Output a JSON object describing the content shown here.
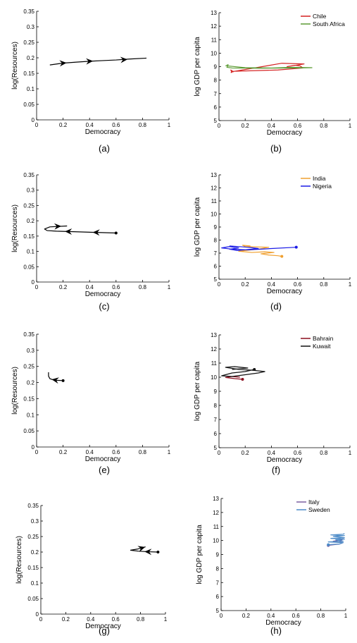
{
  "chart_data": [
    {
      "id": "a",
      "type": "line",
      "xlabel": "Democracy",
      "ylabel": "log(Resources)",
      "xlim": [
        0,
        1
      ],
      "ylim": [
        0,
        0.35
      ],
      "xticks": [
        "0",
        "0.2",
        "0.4",
        "0.6",
        "0.8",
        "1"
      ],
      "yticks": [
        "0",
        "0.05",
        "0.1",
        "0.15",
        "0.2",
        "0.25",
        "0.3",
        "0.35"
      ],
      "caption": "(a)",
      "series": [
        {
          "color": "#000000",
          "x": [
            0.1,
            0.2,
            0.3,
            0.4,
            0.5,
            0.6,
            0.7,
            0.83
          ],
          "y": [
            0.177,
            0.183,
            0.186,
            0.189,
            0.191,
            0.193,
            0.196,
            0.199
          ],
          "arrows": [
            [
              0.2,
              0.183
            ],
            [
              0.4,
              0.189
            ],
            [
              0.66,
              0.194
            ]
          ],
          "start_dot": false
        }
      ]
    },
    {
      "id": "b",
      "type": "line",
      "xlabel": "Democracy",
      "ylabel": "log GDP per capita",
      "xlim": [
        0,
        1
      ],
      "ylim": [
        5,
        13
      ],
      "xticks": [
        "0",
        "0.2",
        "0.4",
        "0.6",
        "0.8",
        "1"
      ],
      "yticks": [
        "5",
        "6",
        "7",
        "8",
        "9",
        "10",
        "11",
        "12",
        "13"
      ],
      "caption": "(b)",
      "legend": [
        "Chile",
        "South Africa"
      ],
      "series": [
        {
          "name": "Chile",
          "color": "#d42020",
          "x": [
            0.1,
            0.09,
            0.11,
            0.1,
            0.45,
            0.64,
            0.62,
            0.58,
            0.52,
            0.65,
            0.48,
            0.1,
            0.09
          ],
          "y": [
            8.55,
            8.75,
            8.62,
            8.65,
            8.75,
            8.9,
            9.05,
            9.1,
            9.0,
            9.2,
            9.25,
            8.62,
            8.55
          ],
          "start_dot": false
        },
        {
          "name": "South Africa",
          "color": "#5a9a32",
          "x": [
            0.05,
            0.07,
            0.06,
            0.1,
            0.3,
            0.6,
            0.71,
            0.55,
            0.4,
            0.2,
            0.07,
            0.06
          ],
          "y": [
            9.05,
            9.15,
            8.95,
            8.9,
            8.88,
            8.9,
            8.92,
            8.95,
            8.9,
            8.92,
            9.05,
            9.0
          ],
          "start_dot": false
        }
      ]
    },
    {
      "id": "c",
      "type": "line",
      "xlabel": "Democracy",
      "ylabel": "log(Resources)",
      "xlim": [
        0,
        1
      ],
      "ylim": [
        0,
        0.35
      ],
      "xticks": [
        "0",
        "0.2",
        "0.4",
        "0.6",
        "0.8",
        "1"
      ],
      "yticks": [
        "0",
        "0.05",
        "0.1",
        "0.15",
        "0.2",
        "0.25",
        "0.3",
        "0.35"
      ],
      "caption": "(c)",
      "series": [
        {
          "color": "#000000",
          "x": [
            0.6,
            0.45,
            0.3,
            0.15,
            0.08,
            0.06,
            0.1,
            0.23
          ],
          "y": [
            0.16,
            0.162,
            0.164,
            0.166,
            0.168,
            0.173,
            0.18,
            0.183
          ],
          "arrows": [
            [
              0.45,
              0.162
            ],
            [
              0.24,
              0.165
            ],
            [
              0.16,
              0.182
            ]
          ],
          "start_dot": true
        }
      ]
    },
    {
      "id": "d",
      "type": "line",
      "xlabel": "Democracy",
      "ylabel": "log GDP per capita",
      "xlim": [
        0,
        1
      ],
      "ylim": [
        5,
        13
      ],
      "xticks": [
        "0",
        "0.2",
        "0.4",
        "0.6",
        "0.8",
        "1"
      ],
      "yticks": [
        "5",
        "6",
        "7",
        "8",
        "9",
        "10",
        "11",
        "12",
        "13"
      ],
      "caption": "(d)",
      "legend": [
        "India",
        "Nigeria"
      ],
      "series": [
        {
          "name": "India",
          "color": "#f0a030",
          "x": [
            0.48,
            0.45,
            0.38,
            0.32,
            0.42,
            0.35,
            0.25,
            0.15,
            0.3,
            0.38,
            0.2,
            0.18,
            0.24
          ],
          "y": [
            6.75,
            6.8,
            6.85,
            6.95,
            7.05,
            7.1,
            7.05,
            7.15,
            7.3,
            7.45,
            7.5,
            7.6,
            7.55
          ],
          "start_dot": true
        },
        {
          "name": "Nigeria",
          "color": "#1a1ae6",
          "x": [
            0.59,
            0.4,
            0.22,
            0.1,
            0.02,
            0.08,
            0.15,
            0.08,
            0.14,
            0.3,
            0.22,
            0.08
          ],
          "y": [
            7.45,
            7.35,
            7.25,
            7.3,
            7.4,
            7.5,
            7.4,
            7.3,
            7.2,
            7.35,
            7.45,
            7.55
          ],
          "start_dot": true
        }
      ]
    },
    {
      "id": "e",
      "type": "line",
      "xlabel": "Democracy",
      "ylabel": "log(Resources)",
      "xlim": [
        0,
        1
      ],
      "ylim": [
        0,
        0.35
      ],
      "xticks": [
        "0",
        "0.2",
        "0.4",
        "0.6",
        "0.8",
        "1"
      ],
      "yticks": [
        "0",
        "0.05",
        "0.1",
        "0.15",
        "0.2",
        "0.25",
        "0.3",
        "0.35"
      ],
      "caption": "(e)",
      "series": [
        {
          "color": "#000000",
          "x": [
            0.2,
            0.15,
            0.12,
            0.1,
            0.09,
            0.09
          ],
          "y": [
            0.206,
            0.207,
            0.209,
            0.212,
            0.22,
            0.232
          ],
          "arrows": [
            [
              0.14,
              0.208
            ]
          ],
          "start_dot": true
        }
      ]
    },
    {
      "id": "f",
      "type": "line",
      "xlabel": "Democracy",
      "ylabel": "log GDP per capita",
      "xlim": [
        0,
        1
      ],
      "ylim": [
        5,
        13
      ],
      "xticks": [
        "0",
        "0.2",
        "0.4",
        "0.6",
        "0.8",
        "1"
      ],
      "yticks": [
        "5",
        "6",
        "7",
        "8",
        "9",
        "10",
        "11",
        "12",
        "13"
      ],
      "caption": "(f)",
      "legend": [
        "Bahrain",
        "Kuwait"
      ],
      "series": [
        {
          "name": "Bahrain",
          "color": "#8a0d1e",
          "x": [
            0.18,
            0.12,
            0.05,
            0.1,
            0.16
          ],
          "y": [
            9.85,
            9.9,
            9.98,
            10.05,
            10.0
          ],
          "start_dot": true
        },
        {
          "name": "Kuwait",
          "color": "#111111",
          "x": [
            0.27,
            0.2,
            0.1,
            0.02,
            0.1,
            0.18,
            0.3,
            0.35,
            0.25,
            0.15,
            0.05,
            0.12,
            0.22,
            0.1
          ],
          "y": [
            10.55,
            10.4,
            10.3,
            10.1,
            10.05,
            10.15,
            10.3,
            10.4,
            10.5,
            10.55,
            10.7,
            10.75,
            10.65,
            10.55
          ],
          "start_dot": true
        }
      ]
    },
    {
      "id": "g",
      "type": "line",
      "xlabel": "Democracy",
      "ylabel": "log(Resources)",
      "xlim": [
        0,
        1
      ],
      "ylim": [
        0,
        0.35
      ],
      "xticks": [
        "0",
        "0.2",
        "0.4",
        "0.6",
        "0.8",
        "1"
      ],
      "yticks": [
        "0",
        "0.05",
        "0.1",
        "0.15",
        "0.2",
        "0.25",
        "0.3",
        "0.35"
      ],
      "caption": "(g)",
      "series": [
        {
          "color": "#000000",
          "x": [
            0.94,
            0.86,
            0.78,
            0.72,
            0.78,
            0.84
          ],
          "y": [
            0.2,
            0.201,
            0.203,
            0.206,
            0.21,
            0.217
          ],
          "arrows": [
            [
              0.86,
              0.201
            ],
            [
              0.81,
              0.213
            ]
          ],
          "start_dot": true
        }
      ]
    },
    {
      "id": "h",
      "type": "line",
      "xlabel": "Democracy",
      "ylabel": "log GDP per capita",
      "xlim": [
        0,
        1
      ],
      "ylim": [
        5,
        13
      ],
      "xticks": [
        "0",
        "0.2",
        "0.4",
        "0.6",
        "0.8",
        "1"
      ],
      "yticks": [
        "5",
        "6",
        "7",
        "8",
        "9",
        "10",
        "11",
        "12",
        "13"
      ],
      "caption": "(h)",
      "legend": [
        "Italy",
        "Sweden"
      ],
      "series": [
        {
          "name": "Italy",
          "color": "#7a5fa0",
          "x": [
            0.86,
            0.95,
            0.98,
            0.9,
            0.97,
            0.98
          ],
          "y": [
            9.65,
            9.75,
            9.85,
            9.95,
            10.05,
            10.15
          ],
          "start_dot": true
        },
        {
          "name": "Sweden",
          "color": "#4a8ac8",
          "x": [
            0.86,
            0.95,
            0.98,
            0.86,
            0.98,
            0.92,
            0.99,
            0.88,
            0.99,
            0.9,
            0.99,
            0.88,
            0.98,
            0.99
          ],
          "y": [
            9.7,
            9.75,
            9.85,
            9.9,
            9.95,
            10.05,
            10.1,
            10.15,
            10.2,
            10.3,
            10.35,
            10.4,
            10.45,
            10.5
          ],
          "start_dot": true
        }
      ]
    }
  ]
}
